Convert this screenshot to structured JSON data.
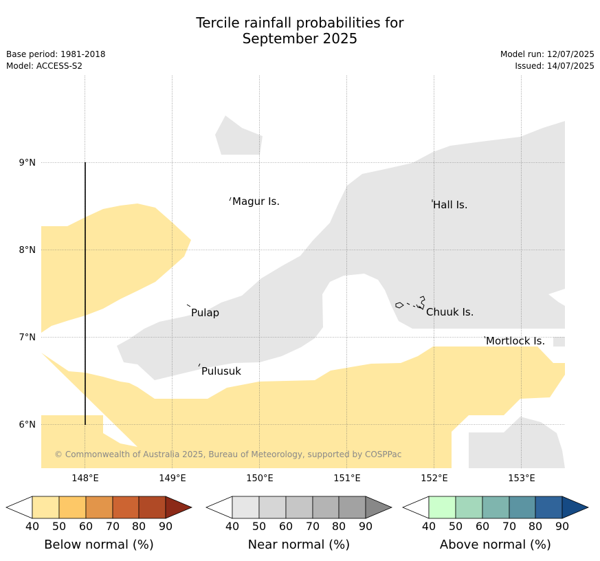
{
  "title": {
    "line1": "Tercile rainfall probabilities for",
    "line2": "September 2025"
  },
  "meta_left": {
    "base_period": "Base period: 1981-2018",
    "model": "Model: ACCESS-S2"
  },
  "meta_right": {
    "model_run": "Model run: 12/07/2025",
    "issued": "Issued: 14/07/2025"
  },
  "map": {
    "lon_labels": [
      "148°E",
      "149°E",
      "150°E",
      "151°E",
      "152°E",
      "153°E"
    ],
    "lat_labels": [
      "9°N",
      "8°N",
      "7°N",
      "6°N"
    ],
    "islands": [
      "Magur Is.",
      "Hall Is.",
      "Pulap",
      "Chuuk Is.",
      "Mortlock Is.",
      "Pulusuk"
    ],
    "copyright": "© Commonwealth of Australia 2025, Bureau of Meteorology, supported by COSPPac",
    "colors": {
      "below": "#ffe8a0",
      "near": "#e6e6e6",
      "grid": "#777777"
    }
  },
  "legends": [
    {
      "label": "Below normal (%)",
      "ticks": [
        "40",
        "50",
        "60",
        "70",
        "80",
        "90"
      ],
      "colors": [
        "#ffe8a0",
        "#fdc867",
        "#e2954a",
        "#cc6432",
        "#b04a26",
        "#8c2a18"
      ]
    },
    {
      "label": "Near normal (%)",
      "ticks": [
        "40",
        "50",
        "60",
        "70",
        "80",
        "90"
      ],
      "colors": [
        "#e6e6e6",
        "#d6d6d6",
        "#c6c6c6",
        "#b4b4b4",
        "#a2a2a2",
        "#888888"
      ]
    },
    {
      "label": "Above normal (%)",
      "ticks": [
        "40",
        "50",
        "60",
        "70",
        "80",
        "90"
      ],
      "colors": [
        "#ccffcc",
        "#a4d8bb",
        "#7fb5ae",
        "#5c94a2",
        "#30649a",
        "#154a84"
      ]
    }
  ]
}
